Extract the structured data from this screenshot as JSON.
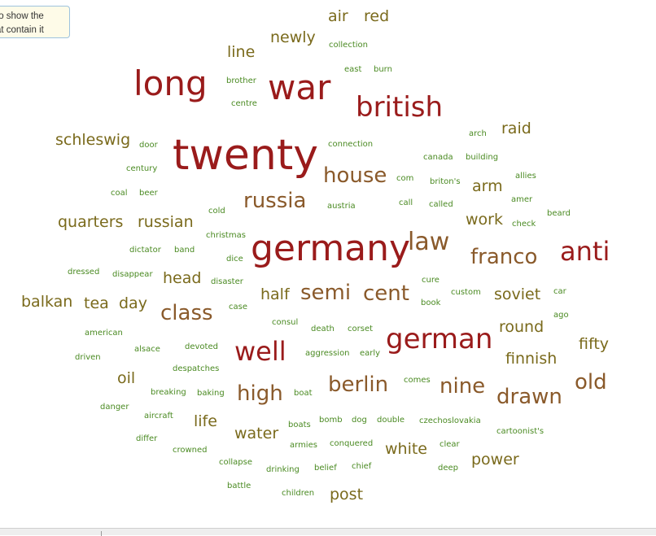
{
  "tooltip": {
    "line1": "to show the",
    "line2": "at contain it"
  },
  "colors": {
    "large": "#9a1b1b",
    "medium": "#8a5a2b",
    "small_olive": "#7a6a1c",
    "small_green": "#4a8a22"
  },
  "words": [
    {
      "text": "twenty",
      "weight": 52
    },
    {
      "text": "germany",
      "weight": 44
    },
    {
      "text": "war",
      "weight": 42
    },
    {
      "text": "long",
      "weight": 42
    },
    {
      "text": "german",
      "weight": 34
    },
    {
      "text": "british",
      "weight": 34
    },
    {
      "text": "well",
      "weight": 32
    },
    {
      "text": "anti",
      "weight": 32
    },
    {
      "text": "law",
      "weight": 30
    },
    {
      "text": "berlin",
      "weight": 26
    },
    {
      "text": "high",
      "weight": 26
    },
    {
      "text": "class",
      "weight": 26
    },
    {
      "text": "nine",
      "weight": 26
    },
    {
      "text": "drawn",
      "weight": 26
    },
    {
      "text": "old",
      "weight": 26
    },
    {
      "text": "semi",
      "weight": 26
    },
    {
      "text": "cent",
      "weight": 26
    },
    {
      "text": "russia",
      "weight": 26
    },
    {
      "text": "house",
      "weight": 26
    },
    {
      "text": "franco",
      "weight": 26
    },
    {
      "text": "finnish",
      "weight": 19
    },
    {
      "text": "fifty",
      "weight": 19
    },
    {
      "text": "round",
      "weight": 19
    },
    {
      "text": "soviet",
      "weight": 19
    },
    {
      "text": "half",
      "weight": 19
    },
    {
      "text": "head",
      "weight": 19
    },
    {
      "text": "day",
      "weight": 19
    },
    {
      "text": "tea",
      "weight": 19
    },
    {
      "text": "balkan",
      "weight": 19
    },
    {
      "text": "quarters",
      "weight": 19
    },
    {
      "text": "russian",
      "weight": 19
    },
    {
      "text": "schleswig",
      "weight": 19
    },
    {
      "text": "line",
      "weight": 19
    },
    {
      "text": "newly",
      "weight": 19
    },
    {
      "text": "air",
      "weight": 19
    },
    {
      "text": "red",
      "weight": 19
    },
    {
      "text": "raid",
      "weight": 19
    },
    {
      "text": "arm",
      "weight": 19
    },
    {
      "text": "work",
      "weight": 19
    },
    {
      "text": "oil",
      "weight": 19
    },
    {
      "text": "life",
      "weight": 19
    },
    {
      "text": "water",
      "weight": 19
    },
    {
      "text": "white",
      "weight": 19
    },
    {
      "text": "power",
      "weight": 19
    },
    {
      "text": "post",
      "weight": 19
    },
    {
      "text": "collection",
      "weight": 10
    },
    {
      "text": "east",
      "weight": 10
    },
    {
      "text": "burn",
      "weight": 10
    },
    {
      "text": "brother",
      "weight": 10
    },
    {
      "text": "centre",
      "weight": 10
    },
    {
      "text": "arch",
      "weight": 10
    },
    {
      "text": "door",
      "weight": 10
    },
    {
      "text": "connection",
      "weight": 10
    },
    {
      "text": "canada",
      "weight": 10
    },
    {
      "text": "building",
      "weight": 10
    },
    {
      "text": "century",
      "weight": 10
    },
    {
      "text": "com",
      "weight": 10
    },
    {
      "text": "briton's",
      "weight": 10
    },
    {
      "text": "allies",
      "weight": 10
    },
    {
      "text": "coal",
      "weight": 10
    },
    {
      "text": "beer",
      "weight": 10
    },
    {
      "text": "call",
      "weight": 10
    },
    {
      "text": "called",
      "weight": 10
    },
    {
      "text": "amer",
      "weight": 10
    },
    {
      "text": "austria",
      "weight": 10
    },
    {
      "text": "beard",
      "weight": 10
    },
    {
      "text": "cold",
      "weight": 10
    },
    {
      "text": "check",
      "weight": 10
    },
    {
      "text": "christmas",
      "weight": 10
    },
    {
      "text": "dictator",
      "weight": 10
    },
    {
      "text": "band",
      "weight": 10
    },
    {
      "text": "dice",
      "weight": 10
    },
    {
      "text": "dressed",
      "weight": 10
    },
    {
      "text": "disappear",
      "weight": 10
    },
    {
      "text": "disaster",
      "weight": 10
    },
    {
      "text": "cure",
      "weight": 10
    },
    {
      "text": "custom",
      "weight": 10
    },
    {
      "text": "car",
      "weight": 10
    },
    {
      "text": "book",
      "weight": 10
    },
    {
      "text": "case",
      "weight": 10
    },
    {
      "text": "ago",
      "weight": 10
    },
    {
      "text": "consul",
      "weight": 10
    },
    {
      "text": "american",
      "weight": 10
    },
    {
      "text": "death",
      "weight": 10
    },
    {
      "text": "corset",
      "weight": 10
    },
    {
      "text": "alsace",
      "weight": 10
    },
    {
      "text": "devoted",
      "weight": 10
    },
    {
      "text": "driven",
      "weight": 10
    },
    {
      "text": "aggression",
      "weight": 10
    },
    {
      "text": "early",
      "weight": 10
    },
    {
      "text": "despatches",
      "weight": 10
    },
    {
      "text": "comes",
      "weight": 10
    },
    {
      "text": "breaking",
      "weight": 10
    },
    {
      "text": "baking",
      "weight": 10
    },
    {
      "text": "boat",
      "weight": 10
    },
    {
      "text": "danger",
      "weight": 10
    },
    {
      "text": "aircraft",
      "weight": 10
    },
    {
      "text": "boats",
      "weight": 10
    },
    {
      "text": "bomb",
      "weight": 10
    },
    {
      "text": "dog",
      "weight": 10
    },
    {
      "text": "double",
      "weight": 10
    },
    {
      "text": "czechoslovakia",
      "weight": 10
    },
    {
      "text": "cartoonist's",
      "weight": 10
    },
    {
      "text": "differ",
      "weight": 10
    },
    {
      "text": "armies",
      "weight": 10
    },
    {
      "text": "conquered",
      "weight": 10
    },
    {
      "text": "clear",
      "weight": 10
    },
    {
      "text": "crowned",
      "weight": 10
    },
    {
      "text": "collapse",
      "weight": 10
    },
    {
      "text": "drinking",
      "weight": 10
    },
    {
      "text": "belief",
      "weight": 10
    },
    {
      "text": "chief",
      "weight": 10
    },
    {
      "text": "deep",
      "weight": 10
    },
    {
      "text": "battle",
      "weight": 10
    },
    {
      "text": "children",
      "weight": 10
    }
  ]
}
